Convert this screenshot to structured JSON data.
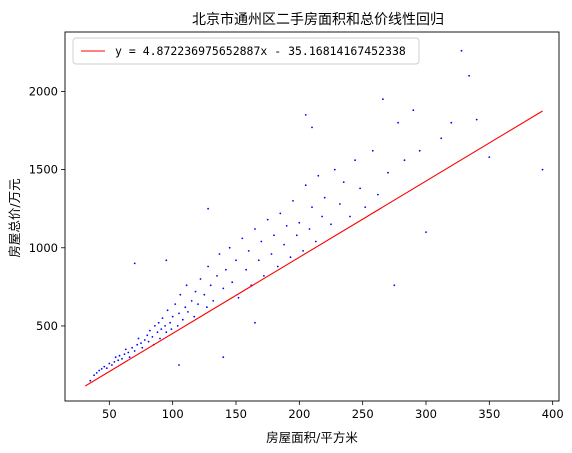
{
  "chart_data": {
    "type": "scatter",
    "title": "北京市通州区二手房面积和总价线性回归",
    "xlabel": "房屋面积/平方米",
    "ylabel": "房屋总价/万元",
    "xlim": [
      15,
      405
    ],
    "ylim": [
      20,
      2380
    ],
    "xticks": [
      50,
      100,
      150,
      200,
      250,
      300,
      350,
      400
    ],
    "yticks": [
      500,
      1000,
      1500,
      2000
    ],
    "grid": false,
    "legend_position": "upper-left",
    "colors": {
      "points": "#0000ff",
      "line": "#ff0000",
      "frame": "#000000"
    },
    "regression": {
      "label": "y = 4.872236975652887x - 35.16814167452338",
      "slope": 4.872236975652887,
      "intercept": -35.16814167452338,
      "x_range": [
        31,
        392
      ]
    },
    "series": [
      {
        "kind": "scatter",
        "points": [
          [
            35,
            150
          ],
          [
            38,
            185
          ],
          [
            40,
            200
          ],
          [
            42,
            215
          ],
          [
            44,
            225
          ],
          [
            46,
            240
          ],
          [
            48,
            230
          ],
          [
            50,
            260
          ],
          [
            52,
            250
          ],
          [
            54,
            270
          ],
          [
            55,
            300
          ],
          [
            57,
            280
          ],
          [
            58,
            310
          ],
          [
            60,
            290
          ],
          [
            62,
            320
          ],
          [
            63,
            350
          ],
          [
            65,
            330
          ],
          [
            66,
            300
          ],
          [
            68,
            360
          ],
          [
            70,
            340
          ],
          [
            72,
            380
          ],
          [
            73,
            420
          ],
          [
            75,
            390
          ],
          [
            76,
            360
          ],
          [
            78,
            410
          ],
          [
            80,
            440
          ],
          [
            81,
            400
          ],
          [
            82,
            470
          ],
          [
            84,
            430
          ],
          [
            85,
            380
          ],
          [
            86,
            500
          ],
          [
            88,
            460
          ],
          [
            89,
            520
          ],
          [
            90,
            420
          ],
          [
            91,
            480
          ],
          [
            92,
            550
          ],
          [
            94,
            500
          ],
          [
            95,
            460
          ],
          [
            96,
            600
          ],
          [
            98,
            520
          ],
          [
            99,
            480
          ],
          [
            100,
            560
          ],
          [
            102,
            640
          ],
          [
            104,
            500
          ],
          [
            105,
            580
          ],
          [
            106,
            700
          ],
          [
            108,
            540
          ],
          [
            110,
            620
          ],
          [
            111,
            760
          ],
          [
            112,
            590
          ],
          [
            115,
            660
          ],
          [
            117,
            560
          ],
          [
            118,
            720
          ],
          [
            120,
            640
          ],
          [
            122,
            800
          ],
          [
            125,
            700
          ],
          [
            127,
            620
          ],
          [
            128,
            880
          ],
          [
            130,
            760
          ],
          [
            132,
            660
          ],
          [
            135,
            820
          ],
          [
            137,
            960
          ],
          [
            140,
            740
          ],
          [
            142,
            860
          ],
          [
            145,
            1000
          ],
          [
            147,
            780
          ],
          [
            150,
            920
          ],
          [
            152,
            680
          ],
          [
            155,
            1060
          ],
          [
            158,
            860
          ],
          [
            160,
            980
          ],
          [
            162,
            760
          ],
          [
            165,
            1120
          ],
          [
            168,
            920
          ],
          [
            170,
            1040
          ],
          [
            172,
            820
          ],
          [
            175,
            1180
          ],
          [
            178,
            960
          ],
          [
            180,
            1080
          ],
          [
            183,
            880
          ],
          [
            185,
            1220
          ],
          [
            188,
            1020
          ],
          [
            190,
            1140
          ],
          [
            193,
            940
          ],
          [
            195,
            1300
          ],
          [
            198,
            1080
          ],
          [
            200,
            1160
          ],
          [
            203,
            980
          ],
          [
            205,
            1400
          ],
          [
            208,
            1120
          ],
          [
            210,
            1260
          ],
          [
            213,
            1040
          ],
          [
            215,
            1460
          ],
          [
            218,
            1200
          ],
          [
            220,
            1320
          ],
          [
            225,
            1150
          ],
          [
            228,
            1500
          ],
          [
            232,
            1280
          ],
          [
            235,
            1420
          ],
          [
            240,
            1200
          ],
          [
            244,
            1560
          ],
          [
            248,
            1380
          ],
          [
            252,
            1260
          ],
          [
            258,
            1620
          ],
          [
            262,
            1340
          ],
          [
            266,
            1950
          ],
          [
            270,
            1480
          ],
          [
            275,
            760
          ],
          [
            278,
            1800
          ],
          [
            283,
            1560
          ],
          [
            290,
            1880
          ],
          [
            295,
            1620
          ],
          [
            300,
            1100
          ],
          [
            312,
            1700
          ],
          [
            320,
            1800
          ],
          [
            328,
            2260
          ],
          [
            334,
            2100
          ],
          [
            340,
            1820
          ],
          [
            350,
            1580
          ],
          [
            392,
            1500
          ],
          [
            70,
            900
          ],
          [
            95,
            920
          ],
          [
            128,
            1250
          ],
          [
            205,
            1850
          ],
          [
            210,
            1770
          ],
          [
            105,
            250
          ],
          [
            140,
            300
          ],
          [
            165,
            520
          ]
        ]
      }
    ]
  }
}
